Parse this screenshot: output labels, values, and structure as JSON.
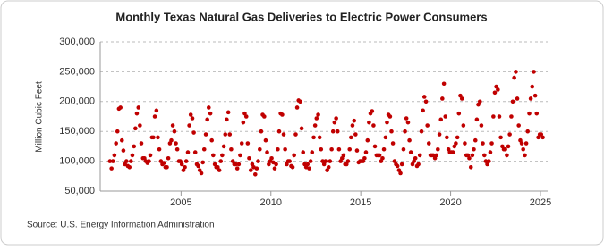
{
  "chart_data": {
    "type": "scatter",
    "title": "Monthly Texas Natural Gas Deliveries to Electric Power Consumers",
    "ylabel": "Million Cubic Feet",
    "source": "Source: U.S. Energy Information Administration",
    "color": "#c00000",
    "grid": true,
    "xlim": [
      2000.5,
      2025.4
    ],
    "xticks": [
      2005,
      2010,
      2015,
      2020,
      2025
    ],
    "ylim": [
      50000,
      300000
    ],
    "yticks": [
      {
        "value": 50000,
        "label": "50,000"
      },
      {
        "value": 100000,
        "label": "100,000"
      },
      {
        "value": 150000,
        "label": "150,000"
      },
      {
        "value": 200000,
        "label": "200,000"
      },
      {
        "value": 250000,
        "label": "250,000"
      },
      {
        "value": 300000,
        "label": "300,000"
      }
    ],
    "x": [
      2001.04,
      2001.13,
      2001.21,
      2001.29,
      2001.38,
      2001.46,
      2001.54,
      2001.63,
      2001.71,
      2001.79,
      2001.88,
      2001.96,
      2002.04,
      2002.13,
      2002.21,
      2002.29,
      2002.38,
      2002.46,
      2002.54,
      2002.63,
      2002.71,
      2002.79,
      2002.88,
      2002.96,
      2003.04,
      2003.13,
      2003.21,
      2003.29,
      2003.38,
      2003.46,
      2003.54,
      2003.63,
      2003.71,
      2003.79,
      2003.88,
      2003.96,
      2004.04,
      2004.13,
      2004.21,
      2004.29,
      2004.38,
      2004.46,
      2004.54,
      2004.63,
      2004.71,
      2004.79,
      2004.88,
      2004.96,
      2005.04,
      2005.13,
      2005.21,
      2005.29,
      2005.38,
      2005.46,
      2005.54,
      2005.63,
      2005.71,
      2005.79,
      2005.88,
      2005.96,
      2006.04,
      2006.13,
      2006.21,
      2006.29,
      2006.38,
      2006.46,
      2006.54,
      2006.63,
      2006.71,
      2006.79,
      2006.88,
      2006.96,
      2007.04,
      2007.13,
      2007.21,
      2007.29,
      2007.38,
      2007.46,
      2007.54,
      2007.63,
      2007.71,
      2007.79,
      2007.88,
      2007.96,
      2008.04,
      2008.13,
      2008.21,
      2008.29,
      2008.38,
      2008.46,
      2008.54,
      2008.63,
      2008.71,
      2008.79,
      2008.88,
      2008.96,
      2009.04,
      2009.13,
      2009.21,
      2009.29,
      2009.38,
      2009.46,
      2009.54,
      2009.63,
      2009.71,
      2009.79,
      2009.88,
      2009.96,
      2010.04,
      2010.13,
      2010.21,
      2010.29,
      2010.38,
      2010.46,
      2010.54,
      2010.63,
      2010.71,
      2010.79,
      2010.88,
      2010.96,
      2011.04,
      2011.13,
      2011.21,
      2011.29,
      2011.38,
      2011.46,
      2011.54,
      2011.63,
      2011.71,
      2011.79,
      2011.88,
      2011.96,
      2012.04,
      2012.13,
      2012.21,
      2012.29,
      2012.38,
      2012.46,
      2012.54,
      2012.63,
      2012.71,
      2012.79,
      2012.88,
      2012.96,
      2013.04,
      2013.13,
      2013.21,
      2013.29,
      2013.38,
      2013.46,
      2013.54,
      2013.63,
      2013.71,
      2013.79,
      2013.88,
      2013.96,
      2014.04,
      2014.13,
      2014.21,
      2014.29,
      2014.38,
      2014.46,
      2014.54,
      2014.63,
      2014.71,
      2014.79,
      2014.88,
      2014.96,
      2015.04,
      2015.13,
      2015.21,
      2015.29,
      2015.38,
      2015.46,
      2015.54,
      2015.63,
      2015.71,
      2015.79,
      2015.88,
      2015.96,
      2016.04,
      2016.13,
      2016.21,
      2016.29,
      2016.38,
      2016.46,
      2016.54,
      2016.63,
      2016.71,
      2016.79,
      2016.88,
      2016.96,
      2017.04,
      2017.13,
      2017.21,
      2017.29,
      2017.38,
      2017.46,
      2017.54,
      2017.63,
      2017.71,
      2017.79,
      2017.88,
      2017.96,
      2018.04,
      2018.13,
      2018.21,
      2018.29,
      2018.38,
      2018.46,
      2018.54,
      2018.63,
      2018.71,
      2018.79,
      2018.88,
      2018.96,
      2019.04,
      2019.13,
      2019.21,
      2019.29,
      2019.38,
      2019.46,
      2019.54,
      2019.63,
      2019.71,
      2019.79,
      2019.88,
      2019.96,
      2020.04,
      2020.13,
      2020.21,
      2020.29,
      2020.38,
      2020.46,
      2020.54,
      2020.63,
      2020.71,
      2020.79,
      2020.88,
      2020.96,
      2021.04,
      2021.13,
      2021.21,
      2021.29,
      2021.38,
      2021.46,
      2021.54,
      2021.63,
      2021.71,
      2021.79,
      2021.88,
      2021.96,
      2022.04,
      2022.13,
      2022.21,
      2022.29,
      2022.38,
      2022.46,
      2022.54,
      2022.63,
      2022.71,
      2022.79,
      2022.88,
      2022.96,
      2023.04,
      2023.13,
      2023.21,
      2023.29,
      2023.38,
      2023.46,
      2023.54,
      2023.63,
      2023.71,
      2023.79,
      2023.88,
      2023.96,
      2024.04,
      2024.13,
      2024.21,
      2024.29,
      2024.38,
      2024.46,
      2024.54,
      2024.63,
      2024.71,
      2024.79,
      2024.88,
      2024.96,
      2025.04,
      2025.13
    ],
    "values": [
      100000,
      88000,
      100000,
      110000,
      130000,
      150000,
      188000,
      190000,
      135000,
      118000,
      95000,
      100000,
      92000,
      90000,
      100000,
      110000,
      125000,
      155000,
      180000,
      190000,
      160000,
      130000,
      105000,
      105000,
      100000,
      97000,
      100000,
      110000,
      140000,
      140000,
      175000,
      185000,
      140000,
      120000,
      100000,
      95000,
      97000,
      90000,
      90000,
      105000,
      130000,
      135000,
      160000,
      150000,
      130000,
      120000,
      100000,
      100000,
      95000,
      85000,
      90000,
      100000,
      115000,
      160000,
      178000,
      172000,
      148000,
      115000,
      95000,
      92000,
      85000,
      80000,
      98000,
      120000,
      145000,
      170000,
      190000,
      180000,
      135000,
      110000,
      95000,
      90000,
      90000,
      85000,
      100000,
      110000,
      125000,
      145000,
      170000,
      182000,
      145000,
      120000,
      100000,
      95000,
      95000,
      88000,
      95000,
      110000,
      130000,
      165000,
      180000,
      175000,
      130000,
      105000,
      85000,
      95000,
      90000,
      78000,
      88000,
      100000,
      120000,
      150000,
      178000,
      175000,
      135000,
      115000,
      95000,
      100000,
      105000,
      98000,
      88000,
      95000,
      120000,
      150000,
      180000,
      178000,
      145000,
      120000,
      95000,
      100000,
      100000,
      92000,
      90000,
      110000,
      145000,
      190000,
      202000,
      200000,
      155000,
      115000,
      95000,
      90000,
      95000,
      88000,
      100000,
      115000,
      140000,
      160000,
      172000,
      178000,
      140000,
      120000,
      100000,
      95000,
      100000,
      85000,
      90000,
      100000,
      120000,
      150000,
      165000,
      172000,
      150000,
      120000,
      100000,
      105000,
      110000,
      95000,
      95000,
      100000,
      120000,
      140000,
      160000,
      168000,
      145000,
      118000,
      98000,
      100000,
      100000,
      100000,
      105000,
      115000,
      135000,
      165000,
      180000,
      184000,
      160000,
      125000,
      110000,
      110000,
      110000,
      100000,
      105000,
      120000,
      140000,
      165000,
      178000,
      175000,
      150000,
      130000,
      100000,
      95000,
      92000,
      85000,
      80000,
      95000,
      120000,
      150000,
      172000,
      165000,
      135000,
      115000,
      95000,
      100000,
      105000,
      92000,
      95000,
      110000,
      150000,
      185000,
      208000,
      200000,
      160000,
      130000,
      110000,
      110000,
      110000,
      105000,
      110000,
      120000,
      145000,
      170000,
      205000,
      230000,
      175000,
      140000,
      120000,
      115000,
      115000,
      115000,
      125000,
      130000,
      140000,
      180000,
      210000,
      205000,
      160000,
      130000,
      110000,
      110000,
      105000,
      90000,
      110000,
      120000,
      135000,
      170000,
      195000,
      200000,
      160000,
      130000,
      110000,
      100000,
      95000,
      100000,
      115000,
      130000,
      175000,
      215000,
      225000,
      220000,
      175000,
      140000,
      125000,
      120000,
      120000,
      110000,
      125000,
      145000,
      175000,
      200000,
      240000,
      250000,
      205000,
      160000,
      135000,
      130000,
      120000,
      110000,
      130000,
      150000,
      180000,
      205000,
      225000,
      250000,
      210000,
      180000,
      140000,
      145000,
      145000,
      140000
    ]
  }
}
